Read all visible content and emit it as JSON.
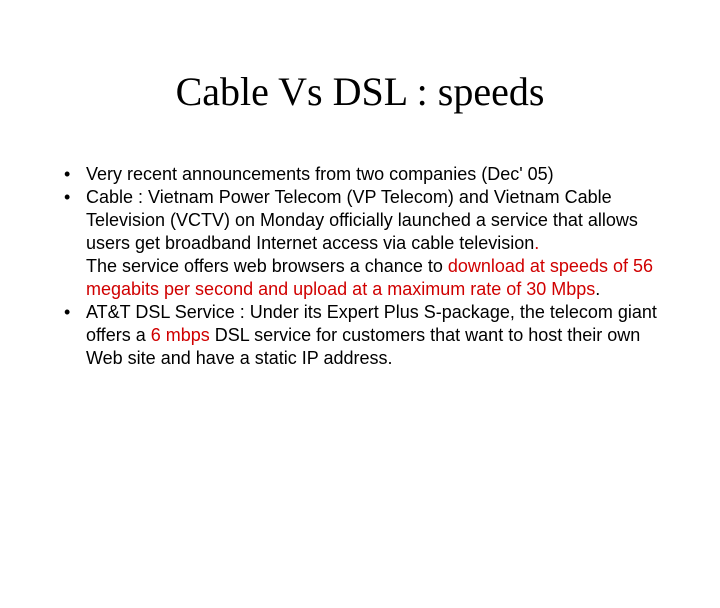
{
  "title": "Cable Vs DSL : speeds",
  "colors": {
    "background": "#ffffff",
    "text": "#000000",
    "accent_red": "#d00000"
  },
  "typography": {
    "title_font": "Times New Roman",
    "body_font": "Arial",
    "title_fontsize_pt": 30,
    "body_fontsize_pt": 13.5
  },
  "bullets": {
    "b1": {
      "text": "Very recent announcements from two companies (Dec' 05)"
    },
    "b2": {
      "p1_a": "Cable : Vietnam Power Telecom (VP Telecom) and Vietnam Cable Television (VCTV) on Monday officially launched a service that allows users get broadband Internet access via cable television",
      "p1_b": ".",
      "p2_a": "The service offers web browsers a chance to ",
      "p2_b": "download at speeds of 56 megabits per second and upload at a maximum rate of 30 Mbps",
      "p2_c": "."
    },
    "b3": {
      "a": "AT&T DSL Service : Under its Expert Plus S-package, the telecom giant offers a ",
      "b": "6 mbps",
      "c": " DSL service for customers that want to host their own Web site and have a static IP address."
    }
  }
}
